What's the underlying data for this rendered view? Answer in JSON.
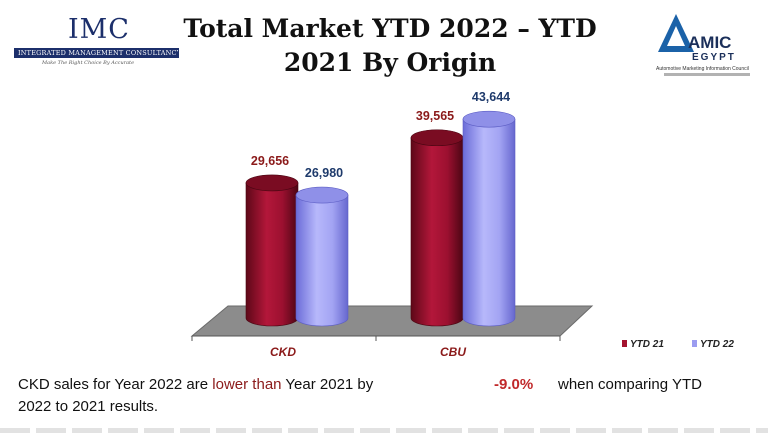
{
  "title": "Total Market YTD 2022 – YTD 2021 By Origin",
  "logo_left": {
    "mark": "IMC",
    "full_name": "INTEGRATED MANAGEMENT CONSULTANCY",
    "tagline": "Make The Right Choice By Accurate"
  },
  "logo_right": {
    "mark": "AMIC",
    "country": "EGYPT",
    "org_name": "Automotive Marketing Information Council"
  },
  "colors": {
    "ytd21": "#a3122e",
    "ytd22": "#9b9cf0",
    "ytd21_label": "#8b1a1a",
    "ytd22_label": "#1e3a6b"
  },
  "chart_data": {
    "type": "bar",
    "categories": [
      "CKD",
      "CBU"
    ],
    "series": [
      {
        "name": "YTD 21",
        "values": [
          29656,
          39565
        ],
        "labels": [
          "29,656",
          "39,565"
        ]
      },
      {
        "name": "YTD 22",
        "values": [
          26980,
          43644
        ],
        "labels": [
          "26,980",
          "43,644"
        ]
      }
    ],
    "ylim": [
      0,
      45000
    ],
    "legend_position": "bottom-right",
    "grid": false
  },
  "summary": {
    "before": "CKD sales for Year 2022 are ",
    "highlight": "lower than",
    "after": " Year 2021 by",
    "percent": "-9.0%",
    "comparison": "when comparing YTD",
    "line2": "2022 to 2021 results."
  }
}
